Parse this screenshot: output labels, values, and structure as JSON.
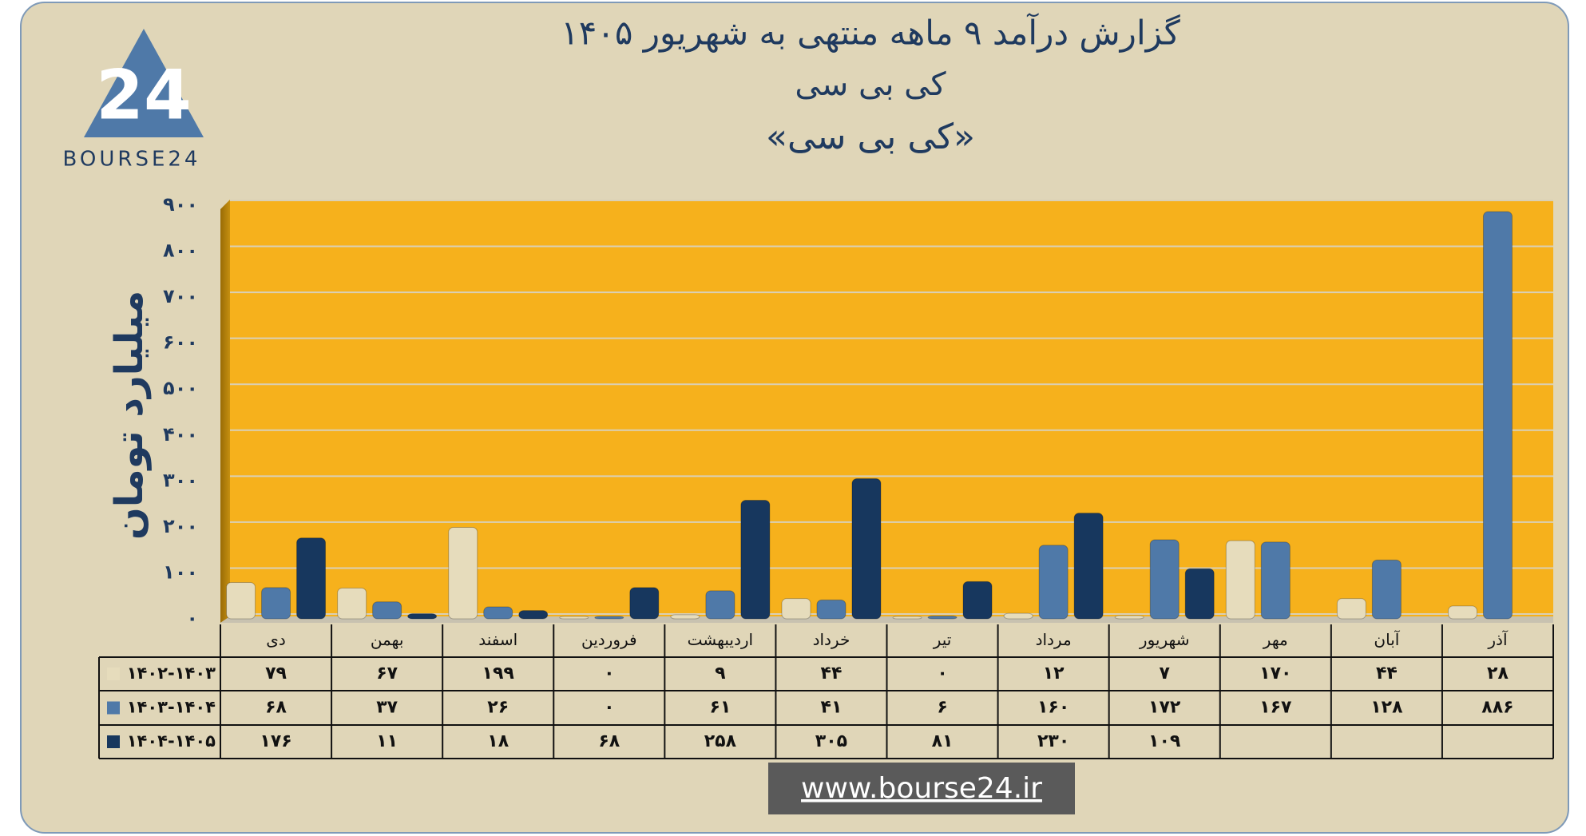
{
  "chart_data": {
    "type": "bar",
    "title": "گزارش  درآمد ۹ ماهه منتهی به شهریور ۱۴۰۵",
    "subtitle": "کی بی سی",
    "annotation": "«کی بی سی»",
    "y_label": "میلیارد تومان",
    "logo_text": "BOURSE24",
    "logo_mark": "24",
    "footer": "www.bourse24.ir",
    "categories": [
      "دی",
      "بهمن",
      "اسفند",
      "فروردین",
      "اردیبهشت",
      "خرداد",
      "تیر",
      "مرداد",
      "شهریور",
      "مهر",
      "آبان",
      "آذر"
    ],
    "series": [
      {
        "name": "۱۴۰۲-۱۴۰۳",
        "color": "#e6dcbc",
        "values": [
          79,
          67,
          199,
          0,
          9,
          44,
          0,
          12,
          7,
          170,
          44,
          28
        ],
        "value_labels": [
          "۷۹",
          "۶۷",
          "۱۹۹",
          "۰",
          "۹",
          "۴۴",
          "۰",
          "۱۲",
          "۷",
          "۱۷۰",
          "۴۴",
          "۲۸"
        ]
      },
      {
        "name": "۱۴۰۳-۱۴۰۴",
        "color": "#4f79a8",
        "values": [
          68,
          37,
          26,
          0,
          61,
          41,
          6,
          160,
          172,
          167,
          128,
          886
        ],
        "value_labels": [
          "۶۸",
          "۳۷",
          "۲۶",
          "۰",
          "۶۱",
          "۴۱",
          "۶",
          "۱۶۰",
          "۱۷۲",
          "۱۶۷",
          "۱۲۸",
          "۸۸۶"
        ]
      },
      {
        "name": "۱۴۰۴-۱۴۰۵",
        "color": "#17375e",
        "values": [
          176,
          11,
          18,
          68,
          258,
          305,
          81,
          230,
          109,
          null,
          null,
          null
        ],
        "value_labels": [
          "۱۷۶",
          "۱۱",
          "۱۸",
          "۶۸",
          "۲۵۸",
          "۳۰۵",
          "۸۱",
          "۲۳۰",
          "۱۰۹",
          null,
          null,
          null
        ]
      }
    ],
    "ylim": [
      0,
      900
    ],
    "yticks": [
      {
        "value": 0,
        "label": "۰"
      },
      {
        "value": 100,
        "label": "۱۰۰"
      },
      {
        "value": 200,
        "label": "۲۰۰"
      },
      {
        "value": 300,
        "label": "۳۰۰"
      },
      {
        "value": 400,
        "label": "۴۰۰"
      },
      {
        "value": 500,
        "label": "۵۰۰"
      },
      {
        "value": 600,
        "label": "۶۰۰"
      },
      {
        "value": 700,
        "label": "۷۰۰"
      },
      {
        "value": 800,
        "label": "۸۰۰"
      },
      {
        "value": 900,
        "label": "۹۰۰"
      }
    ],
    "grid": true
  }
}
